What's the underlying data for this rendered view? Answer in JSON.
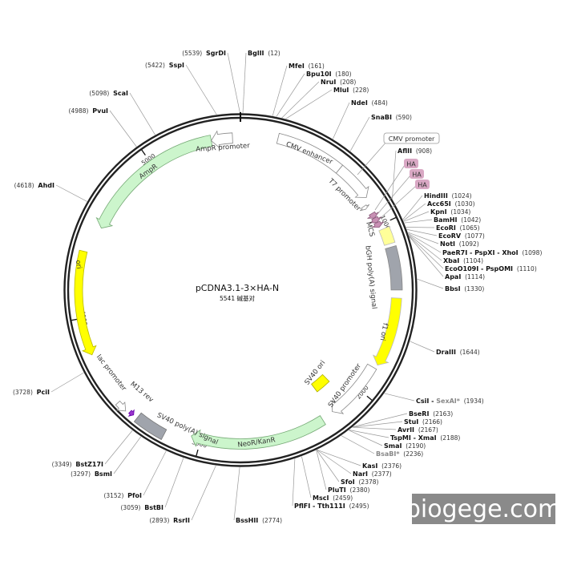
{
  "plasmid": {
    "name": "pCDNA3.1-3×HA-N",
    "size_label": "5541 碱基对",
    "length_bp": 5541
  },
  "ticks": [
    "1000",
    "2000",
    "3000",
    "4000",
    "5000"
  ],
  "features": [
    {
      "label": "CMV enhancer",
      "start": 214,
      "end": 605,
      "color": "#ffffff",
      "direction": "none"
    },
    {
      "label": "CMV promoter",
      "start": 605,
      "end": 826,
      "color": "#ffffff",
      "direction": "forward"
    },
    {
      "label": "T7 promoter",
      "start": 860,
      "end": 880,
      "color": "#ffffff",
      "direction": "forward"
    },
    {
      "label": "HA",
      "start": 920,
      "end": 950,
      "color": "#c890b4",
      "direction": "forward"
    },
    {
      "label": "HA",
      "start": 950,
      "end": 980,
      "color": "#c890b4",
      "direction": "forward"
    },
    {
      "label": "HA",
      "start": 980,
      "end": 1010,
      "color": "#c890b4",
      "direction": "forward"
    },
    {
      "label": "MCS",
      "start": 1028,
      "end": 1120,
      "color": "#ffff99",
      "direction": "none"
    },
    {
      "label": "bGH poly(A) signal",
      "start": 1140,
      "end": 1385,
      "color": "#a0a4ac",
      "direction": "none"
    },
    {
      "label": "f1 ori",
      "start": 1430,
      "end": 1827,
      "color": "#ffff00",
      "direction": "forward"
    },
    {
      "label": "SV40 promoter",
      "start": 1850,
      "end": 2200,
      "color": "#ffffff",
      "direction": "forward"
    },
    {
      "label": "SV40 ori",
      "start": 2090,
      "end": 2200,
      "color": "#ffff00",
      "direction": "none"
    },
    {
      "label": "NeoR/KanR",
      "start": 2272,
      "end": 3057,
      "color": "#ccf5cc",
      "direction": "forward"
    },
    {
      "label": "SV40 poly(A) signal",
      "start": 3200,
      "end": 3370,
      "color": "#a0a4ac",
      "direction": "none"
    },
    {
      "label": "M13 rev",
      "start": 3395,
      "end": 3420,
      "color": "#9933cc",
      "direction": "reverse"
    },
    {
      "label": "lac promoter",
      "start": 3440,
      "end": 3500,
      "color": "#ffffff",
      "direction": "reverse"
    },
    {
      "label": "ori",
      "start": 3793,
      "end": 4370,
      "color": "#ffff00",
      "direction": "reverse"
    },
    {
      "label": "AmpR",
      "start": 4525,
      "end": 5371,
      "color": "#ccf5cc",
      "direction": "reverse"
    },
    {
      "label": "AmpR promoter",
      "start": 5371,
      "end": 5495,
      "color": "#ffffff",
      "direction": "reverse"
    }
  ],
  "sites": [
    {
      "name": "SgrDI",
      "pos": 5539
    },
    {
      "name": "BglII",
      "pos": 12
    },
    {
      "name": "SspI",
      "pos": 5422
    },
    {
      "name": "ScaI",
      "pos": 5098
    },
    {
      "name": "PvuI",
      "pos": 4988
    },
    {
      "name": "AhdI",
      "pos": 4618
    },
    {
      "name": "PciI",
      "pos": 3728
    },
    {
      "name": "BstZ17I",
      "pos": 3349
    },
    {
      "name": "BsmI",
      "pos": 3297
    },
    {
      "name": "PfoI",
      "pos": 3152
    },
    {
      "name": "BstBI",
      "pos": 3059
    },
    {
      "name": "RsrII",
      "pos": 2893
    },
    {
      "name": "BssHII",
      "pos": 2774
    },
    {
      "name": "MfeI",
      "pos": 161
    },
    {
      "name": "Bpu10I",
      "pos": 180
    },
    {
      "name": "NruI",
      "pos": 208
    },
    {
      "name": "MluI",
      "pos": 228
    },
    {
      "name": "NdeI",
      "pos": 484
    },
    {
      "name": "SnaBI",
      "pos": 590
    },
    {
      "name": "AflII",
      "pos": 908
    },
    {
      "name": "HindIII",
      "pos": 1024
    },
    {
      "name": "Acc65I",
      "pos": 1030
    },
    {
      "name": "KpnI",
      "pos": 1034
    },
    {
      "name": "BamHI",
      "pos": 1042
    },
    {
      "name": "EcoRI",
      "pos": 1065
    },
    {
      "name": "EcoRV",
      "pos": 1077
    },
    {
      "name": "NotI",
      "pos": 1092
    },
    {
      "name": "PaeR7I - PspXI - XhoI",
      "pos": 1098
    },
    {
      "name": "XbaI",
      "pos": 1104
    },
    {
      "name": "EcoO109I - PspOMI",
      "pos": 1110
    },
    {
      "name": "ApaI",
      "pos": 1114
    },
    {
      "name": "BbsI",
      "pos": 1330
    },
    {
      "name": "DraIII",
      "pos": 1644
    },
    {
      "name": "CsiI - ",
      "muted_name": "SexAI*",
      "pos": 1934
    },
    {
      "name": "BseRI",
      "pos": 2163
    },
    {
      "name": "StuI",
      "pos": 2166
    },
    {
      "name": "AvrII",
      "pos": 2167
    },
    {
      "name": "TspMI - XmaI",
      "pos": 2188
    },
    {
      "name": "SmaI",
      "pos": 2190
    },
    {
      "name": "",
      "muted_name": "BsaBI*",
      "pos": 2236
    },
    {
      "name": "KasI",
      "pos": 2376
    },
    {
      "name": "NarI",
      "pos": 2377
    },
    {
      "name": "SfoI",
      "pos": 2378
    },
    {
      "name": "PluTI",
      "pos": 2380
    },
    {
      "name": "MscI",
      "pos": 2459
    },
    {
      "name": "PflFI - Tth111I",
      "pos": 2495
    }
  ],
  "watermark": "biogege.com"
}
